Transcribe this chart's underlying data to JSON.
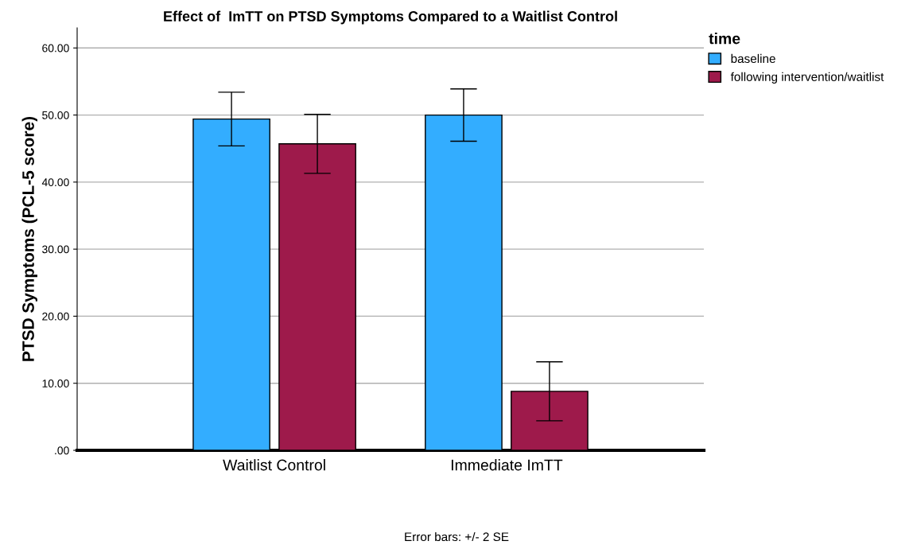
{
  "chart_data": {
    "type": "bar",
    "title": "Effect of  ImTT on PTSD Symptoms Compared to a Waitlist Control",
    "ylabel": "PTSD Symptoms (PCL-5 score)",
    "legend_title": "time",
    "categories": [
      "Waitlist Control",
      "Immediate ImTT"
    ],
    "series": [
      {
        "name": "baseline",
        "color": "#33adff",
        "values": [
          49.4,
          50.0
        ],
        "errors": [
          4.0,
          3.9
        ]
      },
      {
        "name": "following intervention/waitlist",
        "color": "#9e1a4b",
        "values": [
          45.7,
          8.8
        ],
        "errors": [
          4.4,
          4.4
        ]
      }
    ],
    "ylim": [
      0,
      63
    ],
    "yticks": [
      {
        "value": 0,
        "label": ".00"
      },
      {
        "value": 10,
        "label": "10.00"
      },
      {
        "value": 20,
        "label": "20.00"
      },
      {
        "value": 30,
        "label": "30.00"
      },
      {
        "value": 40,
        "label": "40.00"
      },
      {
        "value": 50,
        "label": "50.00"
      },
      {
        "value": 60,
        "label": "60.00"
      }
    ],
    "grid": "y",
    "legend": "top right",
    "annotations": [
      "Error bars: +/- 2 SE"
    ]
  }
}
